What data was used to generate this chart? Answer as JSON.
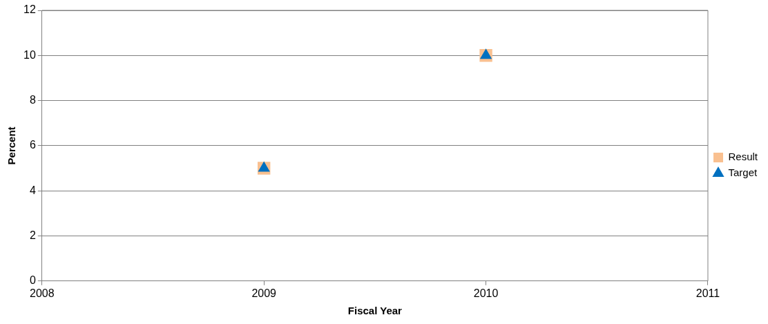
{
  "chart_data": {
    "type": "scatter",
    "xlabel": "Fiscal Year",
    "ylabel": "Percent",
    "x": [
      2009,
      2010
    ],
    "series": [
      {
        "name": "Result",
        "color": "#f9c090",
        "marker": "square",
        "values": [
          5,
          10
        ]
      },
      {
        "name": "Target",
        "color": "#0070c0",
        "marker": "triangle",
        "values": [
          5,
          10
        ]
      }
    ],
    "xlim": [
      2008,
      2011
    ],
    "xticks": [
      2008,
      2009,
      2010,
      2011
    ],
    "ylim": [
      0,
      12
    ],
    "yticks": [
      0,
      2,
      4,
      6,
      8,
      10,
      12
    ],
    "grid": "y",
    "legend": "right"
  }
}
